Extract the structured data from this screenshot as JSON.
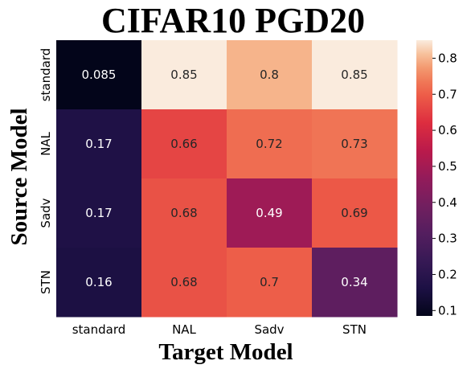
{
  "chart_data": {
    "type": "heatmap",
    "title": "CIFAR10 PGD20",
    "xlabel": "Target Model",
    "ylabel": "Source Model",
    "x_categories": [
      "standard",
      "NAL",
      "Sadv",
      "STN"
    ],
    "y_categories": [
      "standard",
      "NAL",
      "Sadv",
      "STN"
    ],
    "values": [
      [
        0.085,
        0.85,
        0.8,
        0.85
      ],
      [
        0.17,
        0.66,
        0.72,
        0.73
      ],
      [
        0.17,
        0.68,
        0.49,
        0.69
      ],
      [
        0.16,
        0.68,
        0.7,
        0.34
      ]
    ],
    "cell_labels": [
      [
        "0.085",
        "0.85",
        "0.8",
        "0.85"
      ],
      [
        "0.17",
        "0.66",
        "0.72",
        "0.73"
      ],
      [
        "0.17",
        "0.68",
        "0.49",
        "0.69"
      ],
      [
        "0.16",
        "0.68",
        "0.7",
        "0.34"
      ]
    ],
    "colorbar": {
      "range": [
        0.085,
        0.85
      ],
      "ticks": [
        0.1,
        0.2,
        0.3,
        0.4,
        0.5,
        0.6,
        0.7,
        0.8
      ],
      "tick_labels": [
        "0.1",
        "0.2",
        "0.3",
        "0.4",
        "0.5",
        "0.6",
        "0.7",
        "0.8"
      ],
      "colormap": "rocket"
    }
  }
}
